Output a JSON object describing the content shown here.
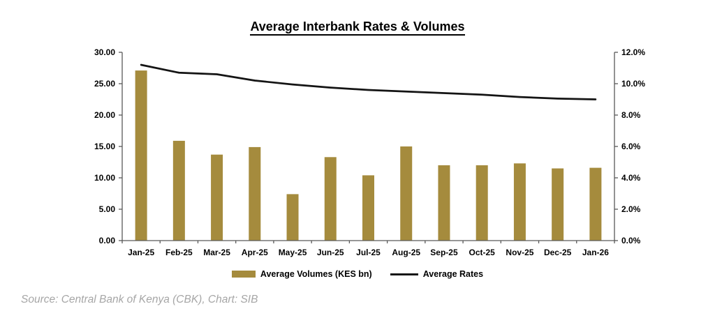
{
  "chart": {
    "title": "Average Interbank Rates & Volumes"
  },
  "chart_data": {
    "type": "combo",
    "categories": [
      "Jan-25",
      "Feb-25",
      "Mar-25",
      "Apr-25",
      "May-25",
      "Jun-25",
      "Jul-25",
      "Aug-25",
      "Sep-25",
      "Oct-25",
      "Nov-25",
      "Dec-25",
      "Jan-26"
    ],
    "series": [
      {
        "name": "Average Volumes (KES bn)",
        "type": "bar",
        "axis": "left",
        "color": "#A58B3D",
        "values": [
          27.1,
          15.9,
          13.7,
          14.9,
          7.4,
          13.3,
          10.4,
          15.0,
          12.0,
          12.0,
          12.3,
          11.5,
          11.6
        ]
      },
      {
        "name": "Average Rates",
        "type": "line",
        "axis": "right",
        "color": "#141414",
        "values": [
          11.2,
          10.7,
          10.6,
          10.2,
          9.95,
          9.75,
          9.6,
          9.5,
          9.4,
          9.3,
          9.15,
          9.05,
          9.0
        ]
      }
    ],
    "left_axis": {
      "min": 0,
      "max": 30,
      "tick_labels": [
        "0.00",
        "5.00",
        "10.00",
        "15.00",
        "20.00",
        "25.00",
        "30.00"
      ]
    },
    "right_axis": {
      "min": 0,
      "max": 12,
      "tick_labels": [
        "0.0%",
        "2.0%",
        "4.0%",
        "6.0%",
        "8.0%",
        "10.0%",
        "12.0%"
      ],
      "unit": "%"
    },
    "grid": false,
    "legend_position": "bottom"
  },
  "footer": {
    "source": "Source: Central Bank of Kenya (CBK), Chart: SIB"
  },
  "colors": {
    "bar": "#A58B3D",
    "line": "#141414",
    "axis": "#595959",
    "source_text": "#A6A6A6",
    "background": "#FFFFFF"
  }
}
